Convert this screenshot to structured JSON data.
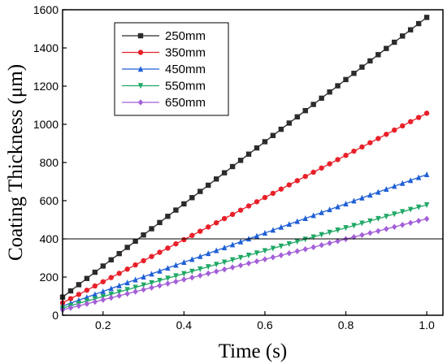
{
  "chart_data": {
    "type": "line",
    "xlabel": "Time (s)",
    "ylabel": "Coating Thickness (μm)",
    "xlim": [
      0.1,
      1.04
    ],
    "ylim": [
      0,
      1600
    ],
    "xticks": [
      0.2,
      0.4,
      0.6,
      0.8,
      1.0
    ],
    "xtick_labels": [
      "0.2",
      "0.4",
      "0.6",
      "0.8",
      "1.0"
    ],
    "yticks": [
      0,
      200,
      400,
      600,
      800,
      1000,
      1200,
      1400,
      1600
    ],
    "ytick_labels": [
      "0",
      "200",
      "400",
      "600",
      "800",
      "1000",
      "1200",
      "1400",
      "1600"
    ],
    "reference_line_y": 400,
    "grid": false,
    "legend_position": "top-left",
    "series": [
      {
        "name": "250mm",
        "color": "#2b2b2b",
        "marker": "square",
        "start": [
          0.1,
          95
        ],
        "end": [
          1.0,
          1560
        ]
      },
      {
        "name": "350mm",
        "color": "#e8202a",
        "marker": "circle",
        "start": [
          0.1,
          65
        ],
        "end": [
          1.0,
          1058
        ]
      },
      {
        "name": "450mm",
        "color": "#1f5fd6",
        "marker": "triangle-up",
        "start": [
          0.1,
          48
        ],
        "end": [
          1.0,
          737
        ]
      },
      {
        "name": "550mm",
        "color": "#1fa865",
        "marker": "triangle-down",
        "start": [
          0.1,
          38
        ],
        "end": [
          1.0,
          578
        ]
      },
      {
        "name": "650mm",
        "color": "#a35fd8",
        "marker": "diamond",
        "start": [
          0.1,
          28
        ],
        "end": [
          1.0,
          505
        ]
      }
    ]
  }
}
